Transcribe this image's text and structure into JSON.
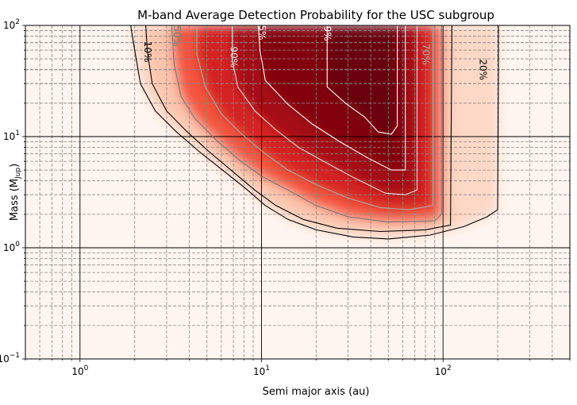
{
  "chart_data": {
    "type": "heatmap",
    "title": "M-band Average Detection Probability for the USC subgroup",
    "xlabel": "Semi major axis (au)",
    "ylabel_prefix": "Mass (M",
    "ylabel_sub": "Jup",
    "ylabel_suffix": ")",
    "xscale": "log",
    "yscale": "log",
    "xlim": [
      0.5,
      500
    ],
    "ylim": [
      0.1,
      100
    ],
    "grid": true,
    "colormap": "Reds",
    "x_ticks": [
      {
        "value": 1,
        "base": "10",
        "exp": "0"
      },
      {
        "value": 10,
        "base": "10",
        "exp": "1"
      },
      {
        "value": 100,
        "base": "10",
        "exp": "2"
      }
    ],
    "y_ticks": [
      {
        "value": 0.1,
        "base": "10",
        "exp": "−1"
      },
      {
        "value": 1,
        "base": "10",
        "exp": "0"
      },
      {
        "value": 10,
        "base": "10",
        "exp": "1"
      },
      {
        "value": 100,
        "base": "10",
        "exp": "2"
      }
    ],
    "contours": [
      {
        "level": "20%",
        "color": "#000000",
        "label": "20%",
        "label_at": [
          165,
          40
        ],
        "points": [
          [
            1.9,
            100
          ],
          [
            2.0,
            60
          ],
          [
            2.15,
            30
          ],
          [
            2.6,
            17
          ],
          [
            3.4,
            11
          ],
          [
            4.6,
            7.2
          ],
          [
            6.2,
            4.9
          ],
          [
            8.2,
            3.4
          ],
          [
            10.5,
            2.4
          ],
          [
            14,
            1.8
          ],
          [
            20,
            1.45
          ],
          [
            32,
            1.25
          ],
          [
            50,
            1.2
          ],
          [
            85,
            1.3
          ],
          [
            130,
            1.55
          ],
          [
            175,
            1.9
          ],
          [
            200,
            2.2
          ],
          [
            202,
            40
          ],
          [
            202,
            100
          ]
        ]
      },
      {
        "level": "10%",
        "color": "#000000",
        "label": "10%",
        "label_at": [
          2.35,
          58
        ],
        "points": [
          [
            2.3,
            100
          ],
          [
            2.35,
            58
          ],
          [
            2.5,
            30
          ],
          [
            3.0,
            17
          ],
          [
            3.9,
            11
          ],
          [
            5.2,
            7.2
          ],
          [
            7.1,
            4.7
          ],
          [
            9.2,
            3.3
          ],
          [
            12,
            2.4
          ],
          [
            17,
            1.8
          ],
          [
            26,
            1.5
          ],
          [
            45,
            1.4
          ],
          [
            80,
            1.45
          ],
          [
            110,
            1.6
          ],
          [
            112,
            100
          ]
        ]
      },
      {
        "level": "50%",
        "color": "#777777",
        "label": "50%",
        "label_at": [
          3.4,
          80
        ],
        "points": [
          [
            3.2,
            100
          ],
          [
            3.3,
            45
          ],
          [
            3.6,
            23
          ],
          [
            4.3,
            14.5
          ],
          [
            5.6,
            9.4
          ],
          [
            7.5,
            6.2
          ],
          [
            10,
            4.4
          ],
          [
            14,
            3.3
          ],
          [
            20,
            2.4
          ],
          [
            30,
            1.9
          ],
          [
            50,
            1.7
          ],
          [
            90,
            1.75
          ],
          [
            98,
            2.0
          ],
          [
            98,
            100
          ]
        ]
      },
      {
        "level": "70%",
        "color": "#aaaaaa",
        "label": "70%",
        "label_at": [
          80,
          55
        ],
        "points": [
          [
            4.4,
            100
          ],
          [
            4.4,
            55
          ],
          [
            4.9,
            28
          ],
          [
            6.0,
            16
          ],
          [
            7.8,
            10.5
          ],
          [
            10.5,
            7.0
          ],
          [
            14,
            5.0
          ],
          [
            20,
            3.7
          ],
          [
            30,
            2.8
          ],
          [
            45,
            2.3
          ],
          [
            65,
            2.2
          ],
          [
            88,
            2.4
          ],
          [
            88,
            100
          ]
        ]
      },
      {
        "level": "90%",
        "color": "#dddddd",
        "label": "90%",
        "label_at": [
          7.0,
          52
        ],
        "points": [
          [
            6.9,
            100
          ],
          [
            6.9,
            48
          ],
          [
            7.4,
            28
          ],
          [
            9.2,
            17
          ],
          [
            12,
            11.5
          ],
          [
            16,
            8
          ],
          [
            22,
            6
          ],
          [
            32,
            4.3
          ],
          [
            48,
            3.1
          ],
          [
            62,
            3.0
          ],
          [
            72,
            3.3
          ],
          [
            72,
            100
          ]
        ]
      },
      {
        "level": "95%",
        "color": "#ffffff",
        "label": "95%",
        "label_at": [
          10,
          92
        ],
        "points": [
          [
            9.6,
            100
          ],
          [
            9.8,
            60
          ],
          [
            10.5,
            32
          ],
          [
            14,
            19.5
          ],
          [
            19,
            13
          ],
          [
            27,
            9
          ],
          [
            38,
            6.5
          ],
          [
            52,
            5.0
          ],
          [
            62,
            5.0
          ],
          [
            62,
            100
          ]
        ]
      },
      {
        "level": "99%",
        "color": "#ffffff",
        "label": "99%",
        "label_at": [
          23,
          90
        ],
        "points": [
          [
            23,
            100
          ],
          [
            23,
            28
          ],
          [
            29,
            20
          ],
          [
            37,
            15
          ],
          [
            44,
            11
          ],
          [
            52,
            10.5
          ],
          [
            56,
            12.5
          ],
          [
            56,
            100
          ]
        ]
      }
    ]
  }
}
